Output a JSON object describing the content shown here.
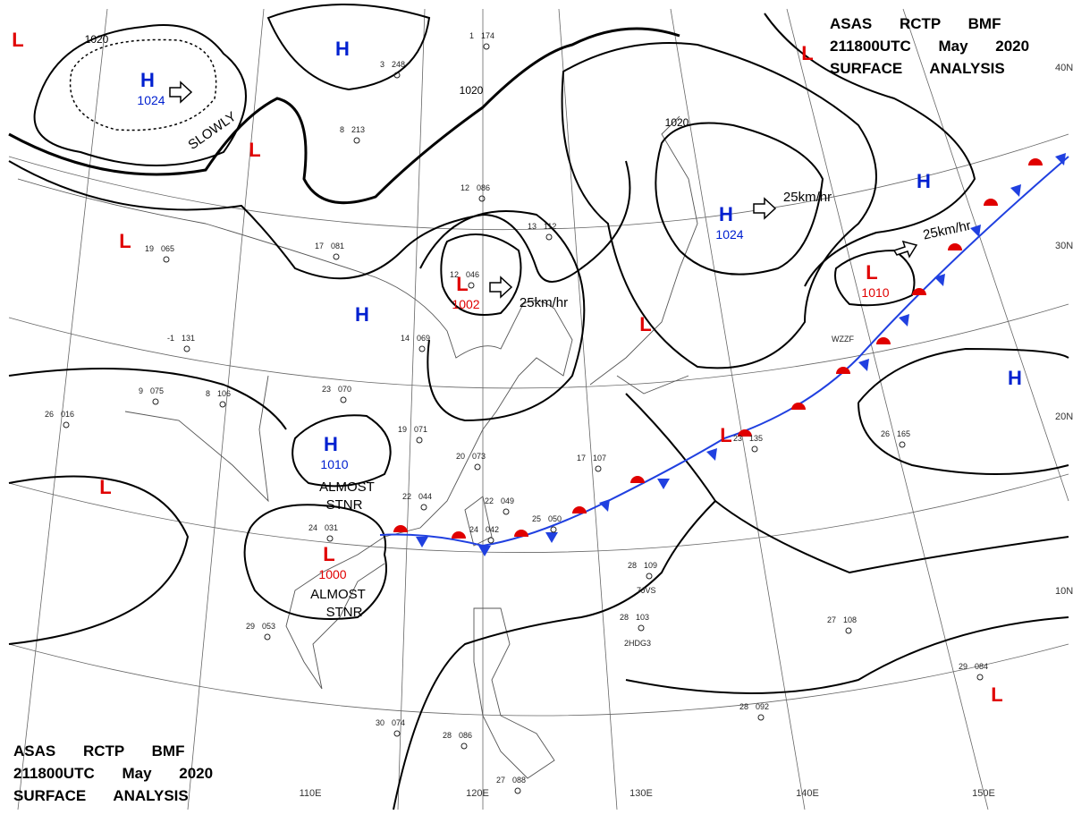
{
  "header": {
    "line1": "ASAS RCTP BMF",
    "line2": "211800UTC May 2020",
    "line3": "SURFACE ANALYSIS"
  },
  "centers": [
    {
      "type": "L"
    },
    {
      "type": "H"
    },
    {
      "type": "H",
      "pressure": "1024"
    },
    {
      "type": "L"
    },
    {
      "type": "L"
    },
    {
      "type": "H"
    },
    {
      "type": "L",
      "pressure": "1002"
    },
    {
      "type": "H",
      "pressure": "1010"
    },
    {
      "type": "L"
    },
    {
      "type": "L",
      "pressure": "1000"
    },
    {
      "type": "H",
      "pressure": "1024"
    },
    {
      "type": "L"
    },
    {
      "type": "L",
      "pressure": "1010"
    },
    {
      "type": "L"
    },
    {
      "type": "H"
    },
    {
      "type": "H"
    },
    {
      "type": "L"
    },
    {
      "type": "L"
    }
  ],
  "isobar_labels": [
    "1020",
    "1020",
    "1020"
  ],
  "motions": [
    "SLOWLY",
    "25km/hr",
    "25km/hr",
    "25km/hr",
    "ALMOST",
    "STNR",
    "ALMOST",
    "STNR"
  ],
  "latitudes": [
    "40N",
    "30N",
    "20N",
    "10N"
  ],
  "longitudes": [
    "110E",
    "120E",
    "130E",
    "140E",
    "150E"
  ],
  "ships": [
    "WZZF",
    "7JVS",
    "2HDG3"
  ],
  "stations": [
    {
      "t": "26",
      "p": "016"
    },
    {
      "t": "9",
      "p": "075"
    },
    {
      "t": "8",
      "p": "106"
    },
    {
      "t": "23",
      "p": "070"
    },
    {
      "t": "19",
      "p": "071"
    },
    {
      "t": "20",
      "p": "073"
    },
    {
      "t": "22",
      "p": "044"
    },
    {
      "t": "22",
      "p": "049"
    },
    {
      "t": "25",
      "p": "050"
    },
    {
      "t": "24",
      "p": "042"
    },
    {
      "t": "24",
      "p": "031"
    },
    {
      "t": "28",
      "p": "109"
    },
    {
      "t": "28",
      "p": "103"
    },
    {
      "t": "27",
      "p": "108"
    },
    {
      "t": "29",
      "p": "084"
    },
    {
      "t": "28",
      "p": "092"
    },
    {
      "t": "30",
      "p": "074"
    },
    {
      "t": "28",
      "p": "086"
    },
    {
      "t": "27",
      "p": "088"
    },
    {
      "t": "29",
      "p": "053"
    },
    {
      "t": "26",
      "p": "165"
    },
    {
      "t": "23",
      "p": "135"
    },
    {
      "t": "17",
      "p": "107"
    },
    {
      "t": "12",
      "p": "086"
    },
    {
      "t": "13",
      "p": "112"
    },
    {
      "t": "12",
      "p": "046"
    },
    {
      "t": "17",
      "p": "081"
    },
    {
      "t": "14",
      "p": "069"
    },
    {
      "t": "1",
      "p": "174"
    },
    {
      "t": "3",
      "p": "248"
    },
    {
      "t": "8",
      "p": "213"
    },
    {
      "t": "19",
      "p": "065"
    },
    {
      "t": "-1",
      "p": "131"
    }
  ]
}
